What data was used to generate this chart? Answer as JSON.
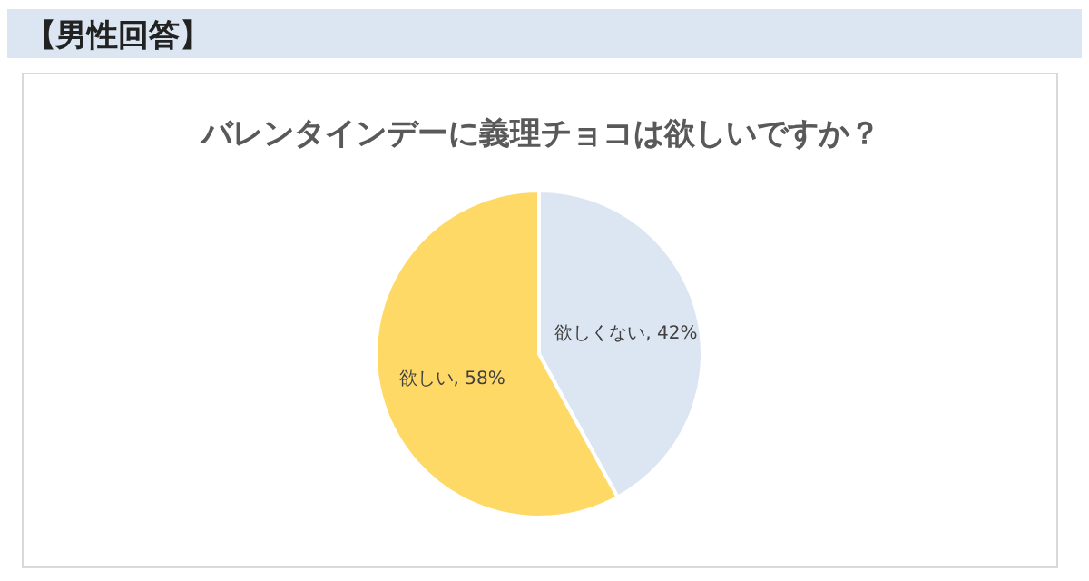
{
  "chart_data": {
    "type": "pie",
    "title": "【男性回答】",
    "subtitle": "バレンタインデーに義理チョコは欲しいですか？",
    "categories": [
      "欲しくない",
      "欲しい"
    ],
    "values": [
      42,
      58
    ],
    "colors": [
      "#dce6f2",
      "#ffd966"
    ],
    "value_labels": [
      ", 42%",
      ", 58%"
    ],
    "legend": false
  }
}
